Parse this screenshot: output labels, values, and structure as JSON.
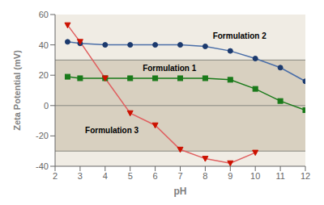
{
  "chart_data": {
    "type": "line",
    "x_label": "pH",
    "y_label": "Zeta Potential (mV)",
    "x": [
      2.5,
      3,
      4,
      5,
      6,
      7,
      8,
      9,
      10,
      11,
      12
    ],
    "series": [
      {
        "name": "Formulation 2",
        "color": "#4a6ea8",
        "marker_color": "#1c3a6e",
        "marker": "circle",
        "values": [
          42,
          41,
          40,
          40,
          40,
          40,
          39,
          36,
          31,
          25,
          16
        ]
      },
      {
        "name": "Formulation 1",
        "color": "#1a7a1a",
        "marker_color": "#1a7a1a",
        "marker": "square",
        "values": [
          19,
          18,
          18,
          18,
          18,
          18,
          18,
          17,
          11,
          3,
          -3
        ]
      },
      {
        "name": "Formulation 3",
        "color": "#e06060",
        "marker_color": "#cc1100",
        "marker": "triangle-down",
        "values": [
          53,
          42,
          18,
          -5,
          -13,
          -29,
          -35,
          -38,
          -31,
          null,
          null
        ]
      }
    ],
    "xlim": [
      2,
      12
    ],
    "ylim": [
      -40,
      60
    ],
    "xticks": [
      2,
      3,
      4,
      5,
      6,
      7,
      8,
      9,
      10,
      11,
      12
    ],
    "yticks": [
      -40,
      -20,
      0,
      20,
      40,
      60
    ],
    "grid": false,
    "hlines": [
      30,
      -30,
      0
    ],
    "hline_color": "#888880",
    "band": {
      "from": -30,
      "to": 30,
      "color": "#d8d0c0"
    },
    "background_color": "#f0ece4",
    "annotations": [
      {
        "text": "Formulation 2",
        "x": 8.3,
        "y": 44,
        "color": "#000000"
      },
      {
        "text": "Formulation 1",
        "x": 5.5,
        "y": 23,
        "color": "#000000"
      },
      {
        "text": "Formulation 3",
        "x": 3.2,
        "y": -18,
        "color": "#000000"
      }
    ]
  }
}
